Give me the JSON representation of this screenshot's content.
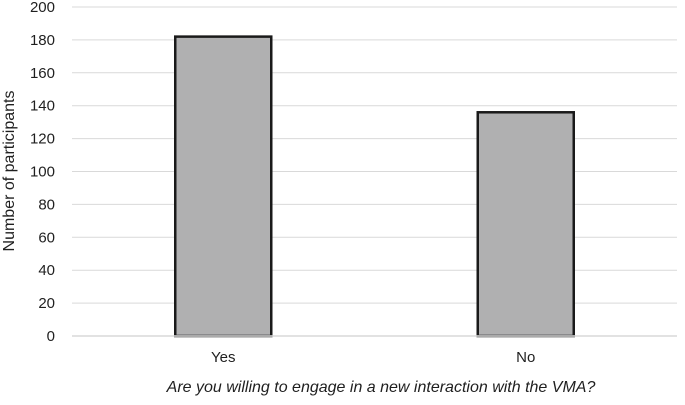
{
  "chart_data": {
    "type": "bar",
    "categories": [
      "Yes",
      "No"
    ],
    "values": [
      182,
      136
    ],
    "xlabel": "Are you willing to engage in a new interaction with the VMA?",
    "ylabel": "Number of participants",
    "ylim": [
      0,
      200
    ],
    "yticks": [
      0,
      20,
      40,
      60,
      80,
      100,
      120,
      140,
      160,
      180,
      200
    ],
    "grid": true,
    "legend": "none",
    "bar_color": "#b0b0b1",
    "bar_edge_color": "#1a1a1a",
    "grid_color": "#d9d9d9"
  }
}
